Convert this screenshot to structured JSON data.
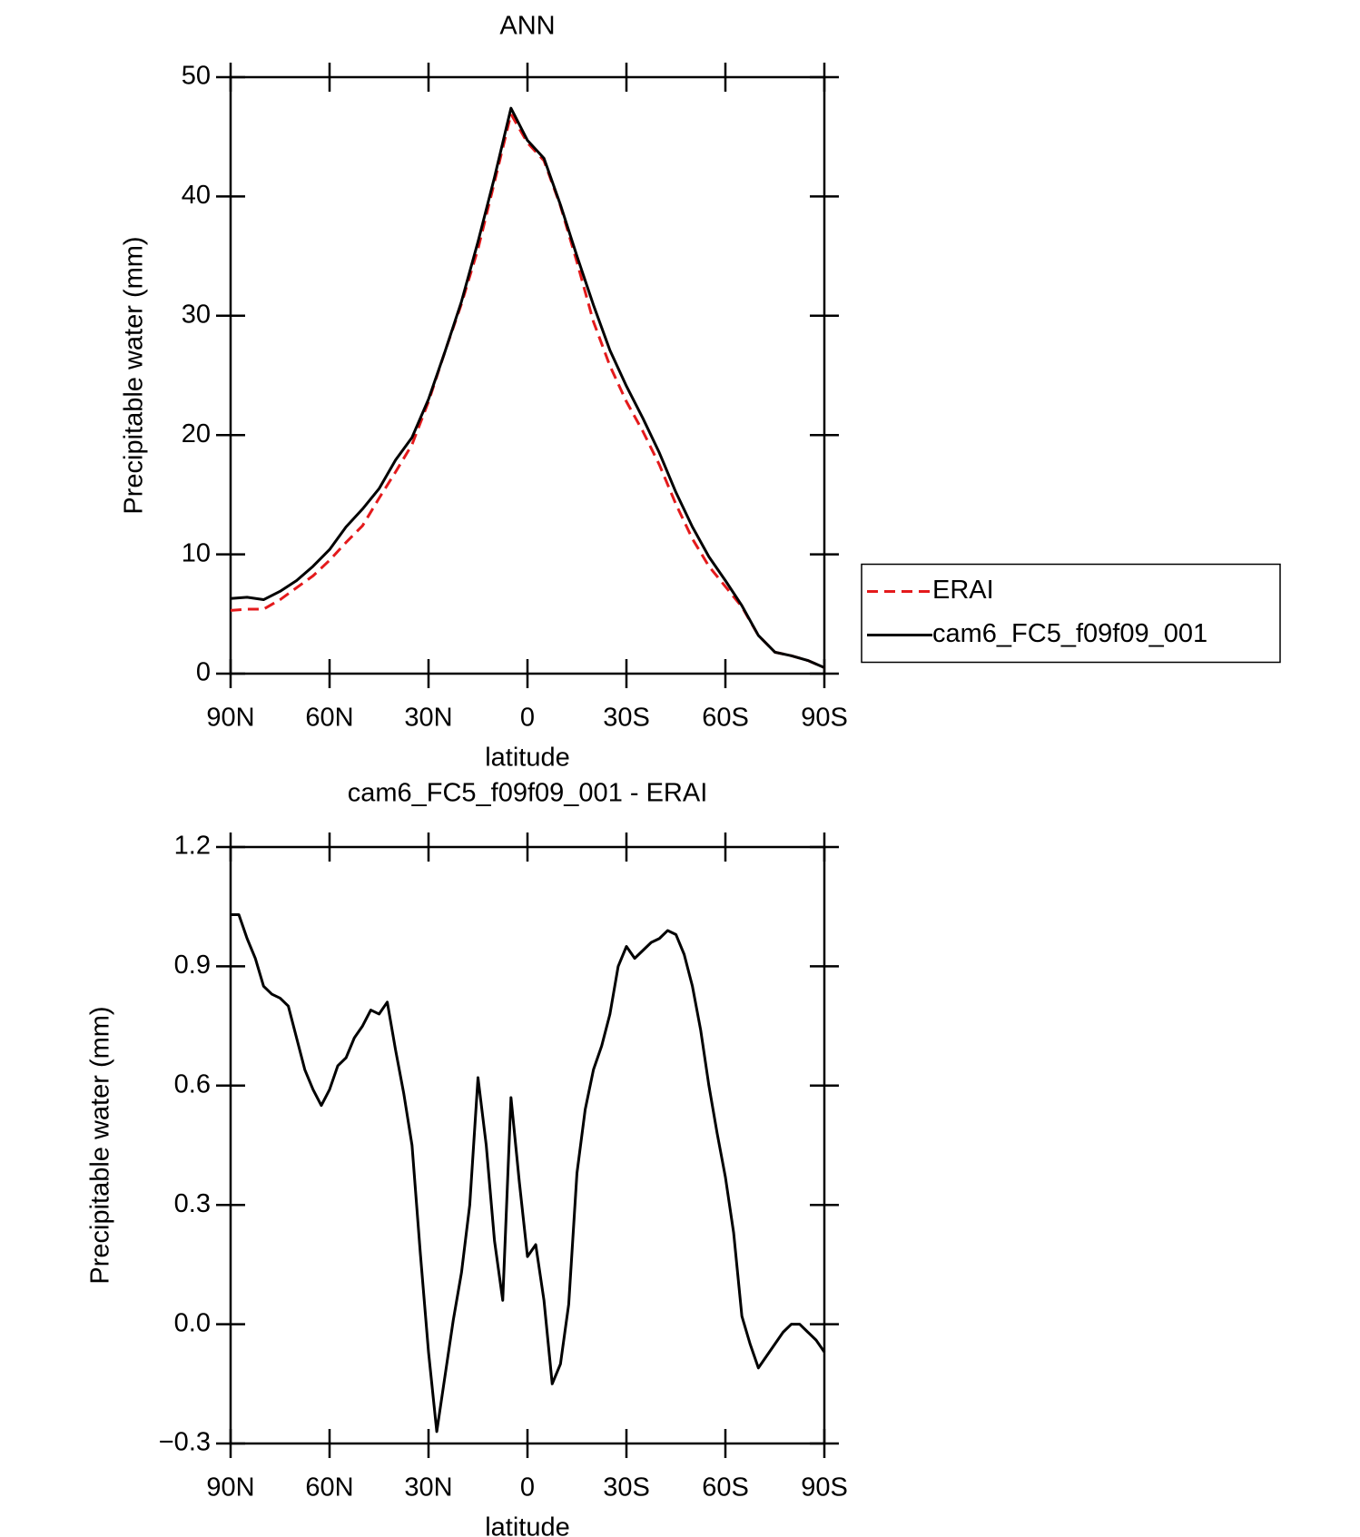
{
  "chart_data": [
    {
      "type": "line",
      "title": "ANN",
      "xlabel": "latitude",
      "ylabel": "Precipitable water (mm)",
      "x": [
        90,
        85,
        80,
        75,
        70,
        65,
        60,
        55,
        50,
        45,
        40,
        35,
        30,
        25,
        20,
        15,
        10,
        5,
        0,
        -5,
        -10,
        -15,
        -20,
        -25,
        -30,
        -35,
        -40,
        -45,
        -50,
        -55,
        -60,
        -65,
        -70,
        -75,
        -80,
        -85,
        -90
      ],
      "xlim": [
        90,
        -90
      ],
      "xticks": [
        {
          "value": 90,
          "label": "90N"
        },
        {
          "value": 60,
          "label": "60N"
        },
        {
          "value": 30,
          "label": "30N"
        },
        0,
        {
          "value": -30,
          "label": "30S"
        },
        {
          "value": -60,
          "label": "60S"
        },
        {
          "value": -90,
          "label": "90S"
        }
      ],
      "ylim": [
        0,
        50
      ],
      "yticks": [
        0,
        10,
        20,
        30,
        40,
        50
      ],
      "legend": "right",
      "series": [
        {
          "name": "ERAI",
          "color": "#e41a1c",
          "linestyle": "dashed",
          "values": [
            5.3,
            5.4,
            5.4,
            6.2,
            7.2,
            8.2,
            9.5,
            11.0,
            12.4,
            14.7,
            16.9,
            19.2,
            22.8,
            27.0,
            31.0,
            35.6,
            41.2,
            46.9,
            44.5,
            43.0,
            39.2,
            34.5,
            29.5,
            25.8,
            22.8,
            20.3,
            17.5,
            14.2,
            11.3,
            9.0,
            7.3,
            5.6,
            3.2,
            1.8,
            1.5,
            1.1,
            0.5
          ]
        },
        {
          "name": "cam6_FC5_f09f09_001",
          "color": "#000000",
          "linestyle": "solid",
          "values": [
            6.3,
            6.4,
            6.2,
            6.9,
            7.8,
            9.0,
            10.4,
            12.3,
            13.8,
            15.5,
            17.9,
            19.8,
            23.0,
            27.0,
            31.2,
            36.2,
            41.6,
            47.4,
            44.7,
            43.2,
            39.3,
            35.0,
            30.9,
            27.1,
            24.1,
            21.4,
            18.5,
            15.2,
            12.3,
            9.8,
            7.8,
            5.7,
            3.2,
            1.8,
            1.5,
            1.1,
            0.5
          ]
        }
      ]
    },
    {
      "type": "line",
      "title": "cam6_FC5_f09f09_001 - ERAI",
      "xlabel": "latitude",
      "ylabel": "Precipitable water (mm)",
      "x": [
        90,
        87.5,
        85,
        82.5,
        80,
        77.5,
        75,
        72.5,
        70,
        67.5,
        65,
        62.5,
        60,
        57.5,
        55,
        52.5,
        50,
        47.5,
        45,
        42.5,
        40,
        37.5,
        35,
        32.5,
        30,
        27.5,
        25,
        22.5,
        20,
        17.5,
        15,
        12.5,
        10,
        7.5,
        5,
        2.5,
        0,
        -2.5,
        -5,
        -7.5,
        -10,
        -12.5,
        -15,
        -17.5,
        -20,
        -22.5,
        -25,
        -27.5,
        -30,
        -32.5,
        -35,
        -37.5,
        -40,
        -42.5,
        -45,
        -47.5,
        -50,
        -52.5,
        -55,
        -57.5,
        -60,
        -62.5,
        -65,
        -67.5,
        -70,
        -72.5,
        -75,
        -77.5,
        -80,
        -82.5,
        -85,
        -87.5,
        -90
      ],
      "xlim": [
        90,
        -90
      ],
      "xticks": [
        {
          "value": 90,
          "label": "90N"
        },
        {
          "value": 60,
          "label": "60N"
        },
        {
          "value": 30,
          "label": "30N"
        },
        0,
        {
          "value": -30,
          "label": "30S"
        },
        {
          "value": -60,
          "label": "60S"
        },
        {
          "value": -90,
          "label": "90S"
        }
      ],
      "ylim": [
        -0.3,
        1.2
      ],
      "yticks": [
        {
          "value": -0.3,
          "label": "−0.3"
        },
        {
          "value": 0,
          "label": "0.0"
        },
        0.3,
        0.6,
        0.9,
        1.2
      ],
      "series": [
        {
          "color": "#000000",
          "linestyle": "solid",
          "values": [
            1.03,
            1.03,
            0.97,
            0.92,
            0.85,
            0.83,
            0.82,
            0.8,
            0.72,
            0.64,
            0.59,
            0.55,
            0.59,
            0.65,
            0.67,
            0.72,
            0.75,
            0.79,
            0.78,
            0.81,
            0.69,
            0.58,
            0.45,
            0.18,
            -0.07,
            -0.27,
            -0.13,
            0.01,
            0.13,
            0.3,
            0.62,
            0.45,
            0.21,
            0.06,
            0.57,
            0.36,
            0.17,
            0.2,
            0.06,
            -0.15,
            -0.1,
            0.05,
            0.38,
            0.54,
            0.64,
            0.7,
            0.78,
            0.9,
            0.95,
            0.92,
            0.94,
            0.96,
            0.97,
            0.99,
            0.98,
            0.93,
            0.85,
            0.74,
            0.6,
            0.48,
            0.37,
            0.23,
            0.02,
            -0.05,
            -0.11,
            -0.08,
            -0.05,
            -0.02,
            0.0,
            0.0,
            -0.02,
            -0.04,
            -0.07
          ]
        }
      ]
    }
  ]
}
